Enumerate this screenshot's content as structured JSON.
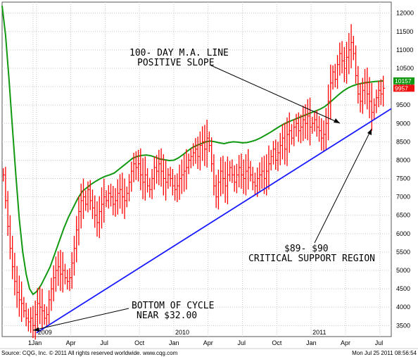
{
  "chart_data": {
    "type": "bar",
    "subtype": "ohlc-weekly",
    "title": "",
    "ylim": [
      3200,
      12300
    ],
    "y_ticks": [
      3500,
      4000,
      4500,
      5000,
      5500,
      6000,
      6500,
      7000,
      7500,
      8000,
      8500,
      9000,
      9500,
      10000,
      10500,
      11000,
      11500,
      12000
    ],
    "y_tick_labels": [
      "3500",
      "4000",
      "4500",
      "5000",
      "5500",
      "6000",
      "6500",
      "7000",
      "7500",
      "8000",
      "8500",
      "9000",
      "9500",
      "10000",
      "10500",
      "11000",
      "11500",
      "12000"
    ],
    "x_ticks": [
      {
        "label": "1",
        "t": -0.3
      },
      {
        "label": "Jan",
        "t": 0
      },
      {
        "label": "Apr",
        "t": 3
      },
      {
        "label": "Jul",
        "t": 6
      },
      {
        "label": "Oct",
        "t": 9
      },
      {
        "label": "Jan",
        "t": 12
      },
      {
        "label": "Apr",
        "t": 15
      },
      {
        "label": "Jul",
        "t": 18
      },
      {
        "label": "Oct",
        "t": 21
      },
      {
        "label": "Jan",
        "t": 24
      },
      {
        "label": "Apr",
        "t": 27
      },
      {
        "label": "Jul",
        "t": 30
      }
    ],
    "year_labels": [
      {
        "label": "2009",
        "t": 0
      },
      {
        "label": "2010",
        "t": 12
      },
      {
        "label": "2011",
        "t": 24
      }
    ],
    "xlim": [
      -3.0,
      31.0
    ],
    "price_series": {
      "name": "",
      "color": "#ff0000",
      "points": [
        [
          -2.9,
          7600
        ],
        [
          -2.7,
          6900
        ],
        [
          -2.5,
          6200
        ],
        [
          -2.3,
          5600
        ],
        [
          -2.1,
          5100
        ],
        [
          -1.9,
          4700
        ],
        [
          -1.7,
          4400
        ],
        [
          -1.5,
          4200
        ],
        [
          -1.3,
          4100
        ],
        [
          -1.1,
          3900
        ],
        [
          -0.9,
          3700
        ],
        [
          -0.7,
          3600
        ],
        [
          -0.5,
          3700
        ],
        [
          -0.3,
          3500
        ],
        [
          -0.1,
          3800
        ],
        [
          0.1,
          4100
        ],
        [
          0.3,
          4000
        ],
        [
          0.5,
          3900
        ],
        [
          0.7,
          3700
        ],
        [
          0.9,
          3800
        ],
        [
          1.1,
          4200
        ],
        [
          1.3,
          4500
        ],
        [
          1.5,
          4800
        ],
        [
          1.7,
          5000
        ],
        [
          1.9,
          5100
        ],
        [
          2.1,
          4900
        ],
        [
          2.3,
          5000
        ],
        [
          2.5,
          4800
        ],
        [
          2.7,
          4700
        ],
        [
          2.9,
          4800
        ],
        [
          3.1,
          5200
        ],
        [
          3.3,
          5600
        ],
        [
          3.5,
          6100
        ],
        [
          3.7,
          6600
        ],
        [
          3.9,
          6900
        ],
        [
          4.1,
          7000
        ],
        [
          4.3,
          6800
        ],
        [
          4.5,
          7200
        ],
        [
          4.7,
          6900
        ],
        [
          4.9,
          6700
        ],
        [
          5.1,
          6500
        ],
        [
          5.3,
          6300
        ],
        [
          5.5,
          6600
        ],
        [
          5.7,
          6800
        ],
        [
          5.9,
          7000
        ],
        [
          6.1,
          6900
        ],
        [
          6.3,
          7100
        ],
        [
          6.5,
          7000
        ],
        [
          6.7,
          6800
        ],
        [
          6.9,
          6900
        ],
        [
          7.1,
          7100
        ],
        [
          7.3,
          7200
        ],
        [
          7.5,
          7000
        ],
        [
          7.7,
          6900
        ],
        [
          7.9,
          7100
        ],
        [
          8.1,
          7400
        ],
        [
          8.3,
          7700
        ],
        [
          8.5,
          7900
        ],
        [
          8.7,
          7800
        ],
        [
          8.9,
          7900
        ],
        [
          9.1,
          7600
        ],
        [
          9.3,
          7400
        ],
        [
          9.5,
          7600
        ],
        [
          9.7,
          7300
        ],
        [
          9.9,
          7200
        ],
        [
          10.1,
          7500
        ],
        [
          10.3,
          7800
        ],
        [
          10.5,
          7700
        ],
        [
          10.7,
          7900
        ],
        [
          10.9,
          7700
        ],
        [
          11.1,
          7500
        ],
        [
          11.3,
          7400
        ],
        [
          11.5,
          7600
        ],
        [
          11.7,
          7500
        ],
        [
          11.9,
          7300
        ],
        [
          12.1,
          7200
        ],
        [
          12.3,
          7300
        ],
        [
          12.5,
          7500
        ],
        [
          12.7,
          7600
        ],
        [
          12.9,
          7700
        ],
        [
          13.1,
          7800
        ],
        [
          13.3,
          8000
        ],
        [
          13.5,
          8100
        ],
        [
          13.7,
          8200
        ],
        [
          13.9,
          8300
        ],
        [
          14.1,
          8100
        ],
        [
          14.3,
          8400
        ],
        [
          14.5,
          8500
        ],
        [
          14.7,
          8300
        ],
        [
          14.9,
          8600
        ],
        [
          15.1,
          8400
        ],
        [
          15.3,
          7900
        ],
        [
          15.5,
          7300
        ],
        [
          15.7,
          7000
        ],
        [
          15.9,
          7400
        ],
        [
          16.1,
          7700
        ],
        [
          16.3,
          7500
        ],
        [
          16.5,
          7300
        ],
        [
          16.7,
          7600
        ],
        [
          16.9,
          7800
        ],
        [
          17.1,
          7600
        ],
        [
          17.3,
          7400
        ],
        [
          17.5,
          7600
        ],
        [
          17.7,
          7800
        ],
        [
          17.9,
          7600
        ],
        [
          18.1,
          7500
        ],
        [
          18.3,
          7700
        ],
        [
          18.5,
          7800
        ],
        [
          18.7,
          7600
        ],
        [
          18.9,
          7400
        ],
        [
          19.1,
          7300
        ],
        [
          19.3,
          7500
        ],
        [
          19.5,
          7600
        ],
        [
          19.7,
          7700
        ],
        [
          19.9,
          7500
        ],
        [
          20.1,
          7700
        ],
        [
          20.3,
          7900
        ],
        [
          20.5,
          8100
        ],
        [
          20.7,
          8300
        ],
        [
          20.9,
          8000
        ],
        [
          21.1,
          8200
        ],
        [
          21.3,
          8400
        ],
        [
          21.5,
          8600
        ],
        [
          21.7,
          8300
        ],
        [
          21.9,
          8700
        ],
        [
          22.1,
          8800
        ],
        [
          22.3,
          8600
        ],
        [
          22.5,
          8900
        ],
        [
          22.7,
          9000
        ],
        [
          22.9,
          8800
        ],
        [
          23.1,
          8900
        ],
        [
          23.3,
          9100
        ],
        [
          23.5,
          9000
        ],
        [
          23.7,
          9200
        ],
        [
          23.9,
          8900
        ],
        [
          24.1,
          9000
        ],
        [
          24.3,
          9100
        ],
        [
          24.5,
          8900
        ],
        [
          24.7,
          8800
        ],
        [
          24.9,
          8600
        ],
        [
          25.1,
          8700
        ],
        [
          25.3,
          9000
        ],
        [
          25.5,
          9600
        ],
        [
          25.7,
          10100
        ],
        [
          25.9,
          10400
        ],
        [
          26.1,
          10200
        ],
        [
          26.3,
          10600
        ],
        [
          26.5,
          10900
        ],
        [
          26.7,
          10700
        ],
        [
          26.9,
          10500
        ],
        [
          27.1,
          10800
        ],
        [
          27.3,
          11000
        ],
        [
          27.5,
          11200
        ],
        [
          27.7,
          10900
        ],
        [
          27.9,
          10300
        ],
        [
          28.1,
          9800
        ],
        [
          28.3,
          9600
        ],
        [
          28.5,
          9900
        ],
        [
          28.7,
          10100
        ],
        [
          28.9,
          9800
        ],
        [
          29.1,
          9600
        ],
        [
          29.3,
          9300
        ],
        [
          29.5,
          9500
        ],
        [
          29.7,
          9700
        ],
        [
          29.9,
          9900
        ],
        [
          30.1,
          9800
        ],
        [
          30.3,
          9957
        ]
      ]
    },
    "moving_average": {
      "name": "100- DAY M.A. LINE",
      "color": "#119911",
      "points": [
        [
          -3.0,
          12200
        ],
        [
          -2.7,
          11400
        ],
        [
          -2.4,
          10200
        ],
        [
          -2.1,
          8900
        ],
        [
          -1.8,
          7600
        ],
        [
          -1.5,
          6400
        ],
        [
          -1.2,
          5500
        ],
        [
          -0.9,
          4900
        ],
        [
          -0.6,
          4500
        ],
        [
          -0.3,
          4350
        ],
        [
          0.0,
          4420
        ],
        [
          0.4,
          4600
        ],
        [
          0.8,
          4850
        ],
        [
          1.2,
          5100
        ],
        [
          1.6,
          5450
        ],
        [
          2.0,
          5800
        ],
        [
          2.4,
          6150
        ],
        [
          2.8,
          6450
        ],
        [
          3.2,
          6700
        ],
        [
          3.6,
          6950
        ],
        [
          4.0,
          7150
        ],
        [
          4.4,
          7250
        ],
        [
          4.8,
          7350
        ],
        [
          5.2,
          7430
        ],
        [
          5.6,
          7500
        ],
        [
          6.0,
          7560
        ],
        [
          6.4,
          7600
        ],
        [
          6.8,
          7650
        ],
        [
          7.2,
          7750
        ],
        [
          7.6,
          7850
        ],
        [
          8.0,
          7950
        ],
        [
          8.4,
          8050
        ],
        [
          8.8,
          8100
        ],
        [
          9.2,
          8130
        ],
        [
          9.6,
          8140
        ],
        [
          10.0,
          8120
        ],
        [
          10.4,
          8080
        ],
        [
          10.8,
          8030
        ],
        [
          11.2,
          8010
        ],
        [
          11.6,
          7990
        ],
        [
          12.0,
          8000
        ],
        [
          12.4,
          8060
        ],
        [
          12.8,
          8150
        ],
        [
          13.2,
          8250
        ],
        [
          13.6,
          8340
        ],
        [
          14.0,
          8400
        ],
        [
          14.4,
          8450
        ],
        [
          14.8,
          8500
        ],
        [
          15.2,
          8520
        ],
        [
          15.6,
          8500
        ],
        [
          16.0,
          8470
        ],
        [
          16.4,
          8450
        ],
        [
          16.8,
          8480
        ],
        [
          17.2,
          8500
        ],
        [
          17.6,
          8490
        ],
        [
          18.0,
          8470
        ],
        [
          18.4,
          8480
        ],
        [
          18.8,
          8510
        ],
        [
          19.2,
          8550
        ],
        [
          19.6,
          8610
        ],
        [
          20.0,
          8680
        ],
        [
          20.4,
          8750
        ],
        [
          20.8,
          8830
        ],
        [
          21.2,
          8910
        ],
        [
          21.6,
          8980
        ],
        [
          22.0,
          9040
        ],
        [
          22.4,
          9090
        ],
        [
          22.8,
          9140
        ],
        [
          23.2,
          9190
        ],
        [
          23.6,
          9240
        ],
        [
          24.0,
          9290
        ],
        [
          24.4,
          9340
        ],
        [
          24.8,
          9390
        ],
        [
          25.2,
          9460
        ],
        [
          25.6,
          9560
        ],
        [
          26.0,
          9670
        ],
        [
          26.4,
          9780
        ],
        [
          26.8,
          9880
        ],
        [
          27.2,
          9960
        ],
        [
          27.6,
          10020
        ],
        [
          28.0,
          10060
        ],
        [
          28.4,
          10090
        ],
        [
          28.8,
          10110
        ],
        [
          29.2,
          10125
        ],
        [
          29.6,
          10140
        ],
        [
          30.0,
          10150
        ],
        [
          30.3,
          10157
        ]
      ]
    },
    "trend_line": {
      "name": "",
      "color": "#1a1aff",
      "from": [
        0.0,
        3300
      ],
      "to": [
        31.0,
        9400
      ]
    },
    "last_values": {
      "moving_average": {
        "label": "10157",
        "color": "#119911",
        "value": 10157
      },
      "price": {
        "label": "9957",
        "color": "#ee1111",
        "value": 9957
      }
    },
    "annotations": {
      "ma_note_line1": "100- DAY M.A. LINE",
      "ma_note_line2": "POSITIVE SLOPE",
      "support_note_line1": "$89- $90",
      "support_note_line2": "CRITICAL SUPPORT REGION",
      "bottom_note_line1": "BOTTOM OF CYCLE",
      "bottom_note_line2": "NEAR $32.00"
    }
  },
  "footer": {
    "source": "Source: CQG, Inc. © 2011 All rights reserved worldwide. www.cqg.com",
    "timestamp": "Mon Jul 25 2011 08:56:54"
  }
}
